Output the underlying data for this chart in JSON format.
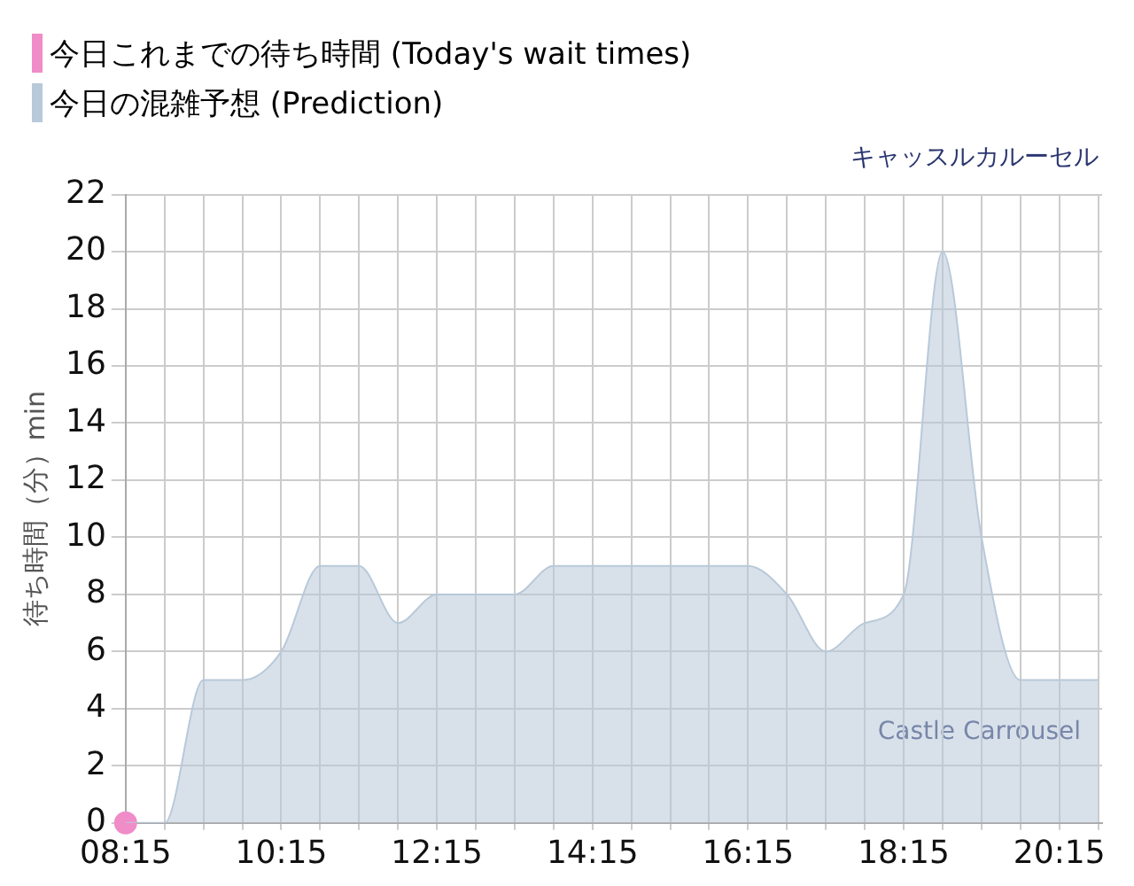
{
  "chart_data": {
    "type": "area",
    "title": "キャッスルカルーセル",
    "ylabel": "待ち時間（分）min",
    "xlim": [
      8.25,
      20.8
    ],
    "xticks": [
      {
        "value": 8.25,
        "label": "08:15"
      },
      {
        "value": 8.75,
        "label": null
      },
      {
        "value": 9.25,
        "label": null
      },
      {
        "value": 9.75,
        "label": null
      },
      {
        "value": 10.25,
        "label": "10:15"
      },
      {
        "value": 10.75,
        "label": null
      },
      {
        "value": 11.25,
        "label": null
      },
      {
        "value": 11.75,
        "label": null
      },
      {
        "value": 12.25,
        "label": "12:15"
      },
      {
        "value": 12.75,
        "label": null
      },
      {
        "value": 13.25,
        "label": null
      },
      {
        "value": 13.75,
        "label": null
      },
      {
        "value": 14.25,
        "label": "14:15"
      },
      {
        "value": 14.75,
        "label": null
      },
      {
        "value": 15.25,
        "label": null
      },
      {
        "value": 15.75,
        "label": null
      },
      {
        "value": 16.25,
        "label": "16:15"
      },
      {
        "value": 16.75,
        "label": null
      },
      {
        "value": 17.25,
        "label": null
      },
      {
        "value": 17.75,
        "label": null
      },
      {
        "value": 18.25,
        "label": "18:15"
      },
      {
        "value": 18.75,
        "label": null
      },
      {
        "value": 19.25,
        "label": null
      },
      {
        "value": 19.75,
        "label": null
      },
      {
        "value": 20.25,
        "label": "20:15"
      },
      {
        "value": 20.75,
        "label": null
      }
    ],
    "ylim": [
      0,
      22
    ],
    "yticks": [
      0,
      2,
      4,
      6,
      8,
      10,
      12,
      14,
      16,
      18,
      20,
      22
    ],
    "grid": true,
    "legend": "top left",
    "annotations": [
      "Castle Carrousel"
    ],
    "series": [
      {
        "name": "今日これまでの待ち時間 (Today's wait times)",
        "type": "scatter",
        "color": "#f08cc8",
        "marker": "circle",
        "x": [
          8.25
        ],
        "values": [
          0
        ]
      },
      {
        "name": "今日の混雑予想 (Prediction)",
        "color": "#b8c9d9",
        "x": [
          8.25,
          8.75,
          9.25,
          9.75,
          10.25,
          10.75,
          11.25,
          11.75,
          12.25,
          12.75,
          13.25,
          13.75,
          14.25,
          14.75,
          15.25,
          15.75,
          16.25,
          16.75,
          17.25,
          17.75,
          18.25,
          18.75,
          19.25,
          19.75,
          20.25,
          20.75
        ],
        "values": [
          0,
          0,
          5,
          5,
          6,
          9,
          9,
          7,
          8,
          8,
          8,
          9,
          9,
          9,
          9,
          9,
          9,
          8,
          6,
          7,
          8,
          20,
          10,
          5,
          5,
          5
        ]
      }
    ]
  }
}
